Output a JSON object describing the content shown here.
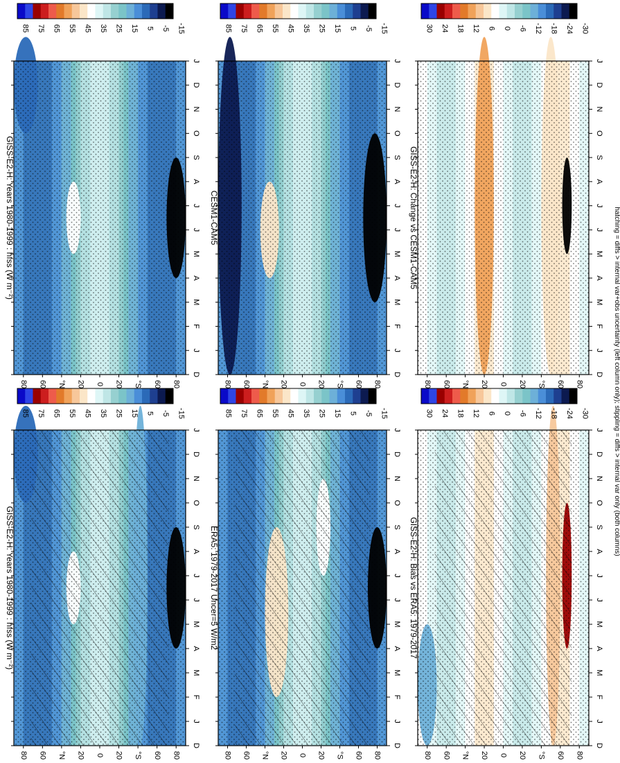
{
  "figure": {
    "orientation": "rotated-90-clockwise",
    "footnote": "hatching = diffs > internal var+obs uncertainty (left column only); stippling = diffs > internal var only (both columns)"
  },
  "colorbars": {
    "absolute": {
      "labels": [
        "85",
        "75",
        "65",
        "55",
        "45",
        "35",
        "25",
        "15",
        "5",
        "-5",
        "-15"
      ],
      "colors": [
        "#0a0ac8",
        "#2e45e6",
        "#9a0000",
        "#cc1e1e",
        "#ee5b4b",
        "#e27a2a",
        "#f0a25a",
        "#f7c79a",
        "#fbe6c8",
        "#ffffff",
        "#def6f6",
        "#bfe6e6",
        "#96d0d0",
        "#7bc4c8",
        "#6db0d8",
        "#4a8ed8",
        "#2b6ab8",
        "#1e3f90",
        "#0c1a50",
        "#000000"
      ]
    },
    "difference": {
      "labels": [
        "30",
        "24",
        "18",
        "12",
        "6",
        "0",
        "-6",
        "-12",
        "-18",
        "-24",
        "-30"
      ],
      "colors": [
        "#0a0ac8",
        "#2e45e6",
        "#9a0000",
        "#cc1e1e",
        "#ee5b4b",
        "#e27a2a",
        "#f0a25a",
        "#f7c79a",
        "#fbe6c8",
        "#ffffff",
        "#def6f6",
        "#bfe6e6",
        "#96d0d0",
        "#7bc4c8",
        "#6db0d8",
        "#4a8ed8",
        "#2b6ab8",
        "#1e3f90",
        "#0c1a50",
        "#000000"
      ]
    }
  },
  "chart_data": [
    {
      "type": "heatmap",
      "title": "GISS-E2-H: Years 1980-1999 : hfss (W m⁻²)",
      "colorbar": "absolute",
      "x": [
        "D",
        "J",
        "F",
        "M",
        "A",
        "M",
        "J",
        "J",
        "A",
        "S",
        "O",
        "N",
        "D",
        "J"
      ],
      "y_ticks": [
        "80",
        "60",
        "°N",
        "20",
        "0",
        "20",
        "°S",
        "60",
        "80"
      ],
      "latitude_range": [
        -90,
        90
      ],
      "value_range": [
        -15,
        85
      ],
      "hatching": true,
      "stippling": true,
      "features": [
        {
          "desc": "Antarctic winter",
          "lat": [
            -90,
            -70
          ],
          "months": [
            4,
            9
          ],
          "value": -15
        },
        {
          "desc": "Arctic winter",
          "lat": [
            65,
            90
          ],
          "months": [
            10,
            14
          ],
          "value": 5
        },
        {
          "desc": "NH subtropics summer",
          "lat": [
            20,
            35
          ],
          "months": [
            5,
            8
          ],
          "value": 40
        },
        {
          "desc": "Southern mid-latitudes",
          "lat": [
            -50,
            -35
          ],
          "months": [
            0,
            14
          ],
          "value": 15
        }
      ]
    },
    {
      "type": "heatmap",
      "title": "ERA5: 1979-2017 Uncer=5 W/m2",
      "colorbar": "absolute",
      "x": [
        "D",
        "J",
        "F",
        "M",
        "A",
        "M",
        "J",
        "J",
        "A",
        "S",
        "O",
        "N",
        "D",
        "J"
      ],
      "y_ticks": [
        "80",
        "60",
        "°N",
        "20",
        "0",
        "20",
        "°S",
        "60",
        "80"
      ],
      "latitude_range": [
        -90,
        90
      ],
      "value_range": [
        -15,
        85
      ],
      "hatching": true,
      "stippling": true,
      "features": [
        {
          "desc": "Antarctic winter",
          "lat": [
            -90,
            -70
          ],
          "months": [
            4,
            9
          ],
          "value": -15
        },
        {
          "desc": "NH subtropics",
          "lat": [
            15,
            40
          ],
          "months": [
            2,
            9
          ],
          "value": 45
        },
        {
          "desc": "SH subtropics",
          "lat": [
            -30,
            -15
          ],
          "months": [
            7,
            11
          ],
          "value": 40
        }
      ]
    },
    {
      "type": "heatmap",
      "title": "GISS-E2-H: Bias vs ERA5: 1979-2017",
      "colorbar": "difference",
      "x": [
        "D",
        "J",
        "F",
        "M",
        "A",
        "M",
        "J",
        "J",
        "A",
        "S",
        "O",
        "N",
        "D",
        "J"
      ],
      "y_ticks": [
        "80",
        "60",
        "°N",
        "20",
        "0",
        "20",
        "°S",
        "60",
        "80"
      ],
      "latitude_range": [
        -90,
        90
      ],
      "value_range": [
        -30,
        30
      ],
      "hatching": true,
      "stippling": true,
      "features": [
        {
          "desc": "Antarctic coast bias",
          "lat": [
            -72,
            -62
          ],
          "months": [
            4,
            10
          ],
          "value": 24
        },
        {
          "desc": "Southern Ocean",
          "lat": [
            -60,
            -45
          ],
          "months": [
            0,
            14
          ],
          "value": 8
        },
        {
          "desc": "Arctic",
          "lat": [
            70,
            90
          ],
          "months": [
            0,
            5
          ],
          "value": -12
        }
      ]
    },
    {
      "type": "heatmap",
      "title": "GISS-E2-H: Years 1980-1999 : hfss (W m⁻²)",
      "colorbar": "absolute",
      "x": [
        "D",
        "J",
        "F",
        "M",
        "A",
        "M",
        "J",
        "J",
        "A",
        "S",
        "O",
        "N",
        "D",
        "J"
      ],
      "y_ticks": [
        "80",
        "60",
        "°N",
        "20",
        "0",
        "20",
        "°S",
        "60",
        "80"
      ],
      "latitude_range": [
        -90,
        90
      ],
      "value_range": [
        -15,
        85
      ],
      "hatching": false,
      "stippling": true,
      "features": [
        {
          "desc": "Antarctic winter",
          "lat": [
            -90,
            -70
          ],
          "months": [
            4,
            9
          ],
          "value": -15
        },
        {
          "desc": "Arctic winter",
          "lat": [
            65,
            90
          ],
          "months": [
            10,
            14
          ],
          "value": 5
        },
        {
          "desc": "NH subtropics summer",
          "lat": [
            20,
            35
          ],
          "months": [
            5,
            8
          ],
          "value": 40
        }
      ]
    },
    {
      "type": "heatmap",
      "title": "CESM1-CAM5",
      "colorbar": "absolute",
      "x": [
        "D",
        "J",
        "F",
        "M",
        "A",
        "M",
        "J",
        "J",
        "A",
        "S",
        "O",
        "N",
        "D",
        "J"
      ],
      "y_ticks": [
        "80",
        "60",
        "°N",
        "20",
        "0",
        "20",
        "°S",
        "60",
        "80"
      ],
      "latitude_range": [
        -90,
        90
      ],
      "value_range": [
        -15,
        85
      ],
      "hatching": false,
      "stippling": true,
      "features": [
        {
          "desc": "Antarctic winter",
          "lat": [
            -90,
            -65
          ],
          "months": [
            3,
            10
          ],
          "value": -15
        },
        {
          "desc": "Arctic",
          "lat": [
            65,
            90
          ],
          "months": [
            0,
            14
          ],
          "value": -5
        },
        {
          "desc": "NH subtropics summer",
          "lat": [
            25,
            45
          ],
          "months": [
            4,
            8
          ],
          "value": 45
        }
      ]
    },
    {
      "type": "heatmap",
      "title": "GISS-E2-H: Change vs CESM1-CAM5",
      "colorbar": "difference",
      "x": [
        "D",
        "J",
        "F",
        "M",
        "A",
        "M",
        "J",
        "J",
        "A",
        "S",
        "O",
        "N",
        "D",
        "J"
      ],
      "y_ticks": [
        "80",
        "60",
        "°N",
        "20",
        "0",
        "20",
        "°S",
        "60",
        "80"
      ],
      "latitude_range": [
        -90,
        90
      ],
      "value_range": [
        -30,
        30
      ],
      "hatching": false,
      "stippling": true,
      "features": [
        {
          "desc": "Antarctic coast change",
          "lat": [
            -72,
            -62
          ],
          "months": [
            5,
            9
          ],
          "value": -30
        },
        {
          "desc": "Subtropics",
          "lat": [
            10,
            30
          ],
          "months": [
            0,
            14
          ],
          "value": 12
        },
        {
          "desc": "Southern Ocean",
          "lat": [
            -60,
            -40
          ],
          "months": [
            0,
            14
          ],
          "value": 6
        }
      ]
    }
  ]
}
